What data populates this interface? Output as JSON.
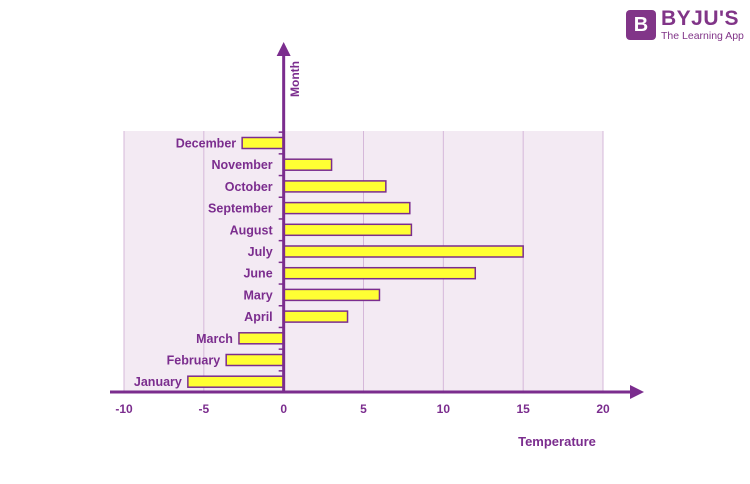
{
  "brand": {
    "logo_letter": "B",
    "name": "BYJU'S",
    "tagline": "The Learning App"
  },
  "colors": {
    "accent": "#7b2d8e",
    "bar_fill": "#ffff33",
    "bar_stroke": "#7b2d8e",
    "plot_bg": "#f3eaf3",
    "grid": "#d5b8d9"
  },
  "chart_data": {
    "type": "bar",
    "orientation": "horizontal",
    "title": "",
    "xlabel": "Temperature",
    "ylabel": "Month",
    "categories": [
      "January",
      "February",
      "March",
      "April",
      "Mary",
      "June",
      "July",
      "August",
      "September",
      "October",
      "November",
      "December"
    ],
    "values": [
      -6,
      -3.6,
      -2.8,
      4,
      6,
      12,
      15,
      8,
      7.9,
      6.4,
      3,
      -2.6
    ],
    "xlim": [
      -10,
      20
    ],
    "xticks": [
      "-10",
      "-5",
      "0",
      "5",
      "10",
      "15",
      "20"
    ],
    "grid": true
  }
}
